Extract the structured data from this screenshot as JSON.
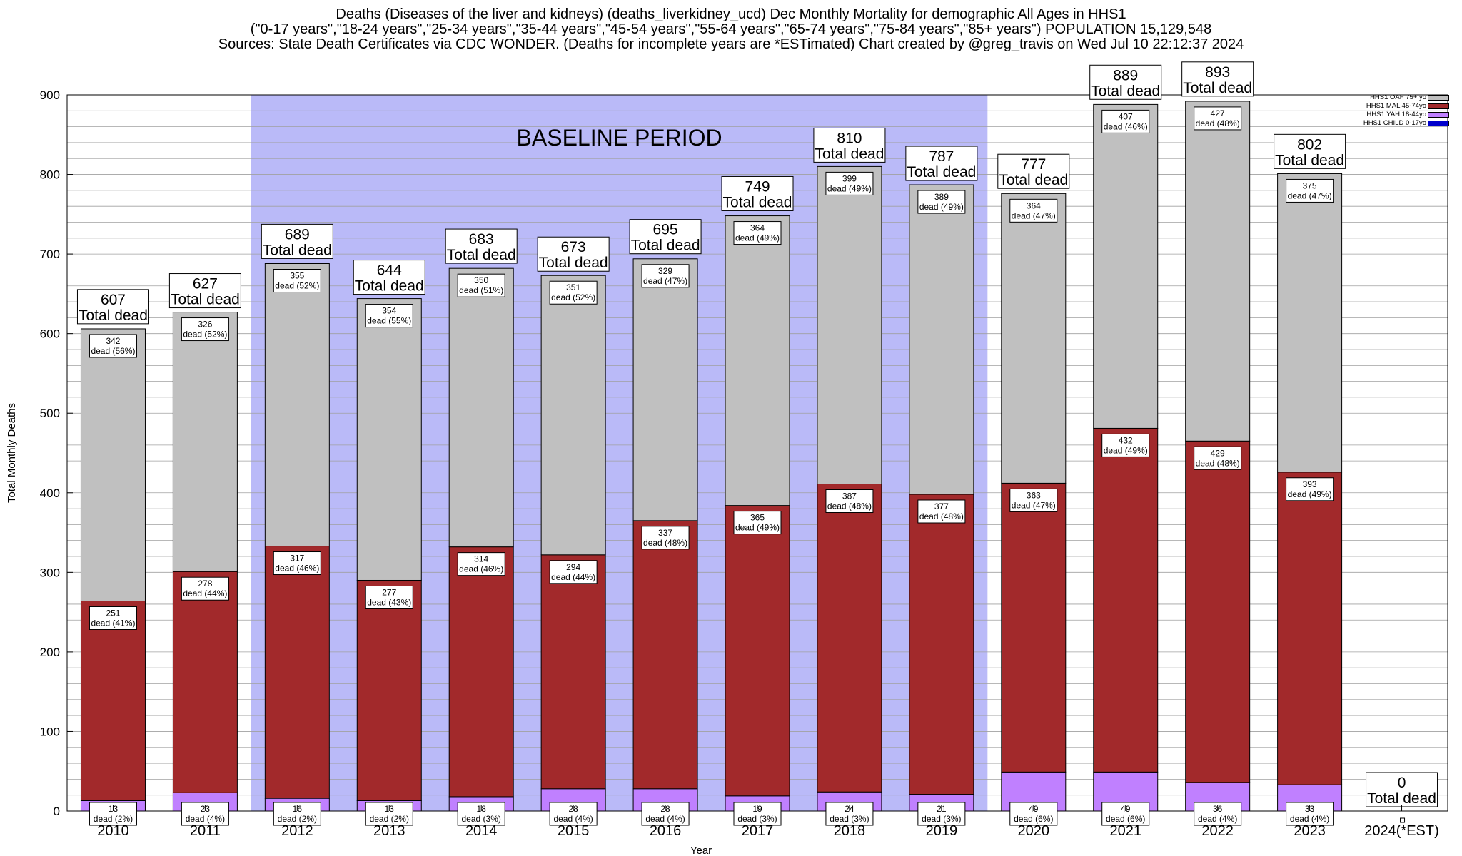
{
  "header": {
    "line1": "Deaths (Diseases of the liver and kidneys) (deaths_liverkidney_ucd) Dec Monthly Mortality for demographic All Ages in HHS1",
    "line2": "(\"0-17 years\",\"18-24 years\",\"25-34 years\",\"35-44 years\",\"45-54 years\",\"55-64 years\",\"65-74 years\",\"75-84 years\",\"85+ years\") POPULATION 15,129,548",
    "line3": "Sources: State Death Certificates via CDC WONDER. (Deaths for incomplete years are *ESTimated)                Chart created by @greg_travis on Wed Jul 10 22:12:37 2024"
  },
  "chart_data": {
    "type": "bar",
    "stacked": true,
    "xlabel": "Year",
    "ylabel": "Total Monthly Deaths",
    "ylim": [
      0,
      900
    ],
    "yticks": [
      0,
      100,
      200,
      300,
      400,
      500,
      600,
      700,
      800,
      900
    ],
    "categories": [
      "2010",
      "2011",
      "2012",
      "2013",
      "2014",
      "2015",
      "2016",
      "2017",
      "2018",
      "2019",
      "2020",
      "2021",
      "2022",
      "2023",
      "2024(*EST)"
    ],
    "series": [
      {
        "name": "HHS1 CHILD 0-17yo",
        "color": "#0000cc",
        "values": [
          0,
          0,
          0,
          0,
          0,
          0,
          0,
          0,
          0,
          0,
          0,
          0,
          0,
          0,
          0
        ],
        "pct": [
          "",
          "",
          "",
          "",
          "",
          "",
          "",
          "",
          "",
          "",
          "",
          "",
          "",
          "",
          ""
        ]
      },
      {
        "name": "HHS1 YAH 18-44yo",
        "color": "#c080ff",
        "values": [
          13,
          23,
          16,
          13,
          18,
          28,
          28,
          19,
          24,
          21,
          49,
          49,
          36,
          33,
          0
        ],
        "pct": [
          "2%",
          "4%",
          "2%",
          "2%",
          "3%",
          "4%",
          "4%",
          "3%",
          "3%",
          "3%",
          "6%",
          "6%",
          "4%",
          "4%",
          ""
        ]
      },
      {
        "name": "HHS1 MAL 45-74yo",
        "color": "#a2292b",
        "values": [
          251,
          278,
          317,
          277,
          314,
          294,
          337,
          365,
          387,
          377,
          363,
          432,
          429,
          393,
          0
        ],
        "pct": [
          "41%",
          "44%",
          "46%",
          "43%",
          "46%",
          "44%",
          "48%",
          "49%",
          "48%",
          "48%",
          "47%",
          "49%",
          "48%",
          "49%",
          ""
        ]
      },
      {
        "name": "HHS1 OAF 75+ yo",
        "color": "#c0c0c0",
        "values": [
          342,
          326,
          355,
          354,
          350,
          351,
          329,
          364,
          399,
          389,
          364,
          407,
          427,
          375,
          0
        ],
        "pct": [
          "56%",
          "52%",
          "52%",
          "55%",
          "51%",
          "52%",
          "47%",
          "49%",
          "49%",
          "49%",
          "47%",
          "46%",
          "48%",
          "47%",
          ""
        ]
      }
    ],
    "totals": [
      607,
      627,
      689,
      644,
      683,
      673,
      695,
      749,
      810,
      787,
      777,
      889,
      893,
      802,
      0
    ],
    "total_label": "Total dead",
    "segment_label_suffix": "dead",
    "baseline": {
      "label": "BASELINE PERIOD",
      "from": "2012",
      "to": "2019",
      "color": "#babaf8"
    },
    "grid": true,
    "legend_position": "top-right"
  }
}
